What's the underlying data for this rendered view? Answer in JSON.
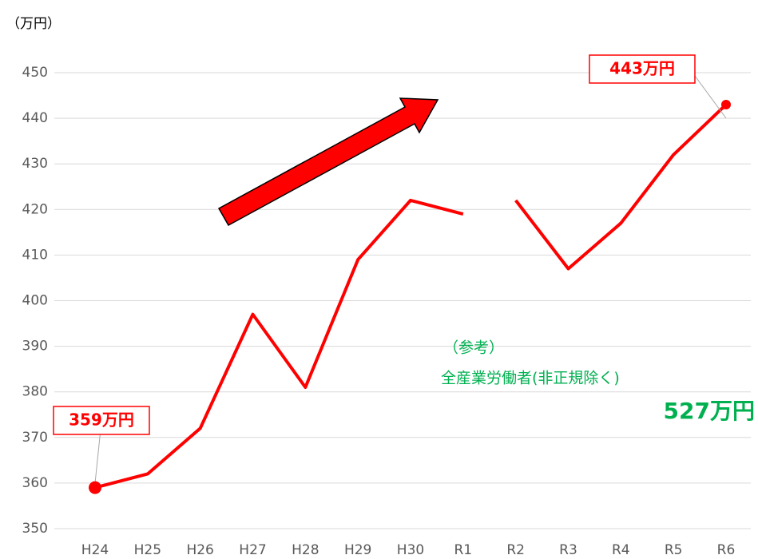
{
  "chart_data": {
    "type": "line",
    "categories": [
      "H24",
      "H25",
      "H26",
      "H27",
      "H28",
      "H29",
      "H30",
      "R1",
      "R2",
      "R3",
      "R4",
      "R5",
      "R6"
    ],
    "series": [
      {
        "color": "#ff0000",
        "values": [
          359,
          362,
          372,
          397,
          381,
          409,
          422,
          419,
          null,
          null,
          null,
          null,
          null
        ]
      },
      {
        "color": "#ff0000",
        "values": [
          null,
          null,
          null,
          null,
          null,
          null,
          null,
          null,
          422,
          407,
          417,
          432,
          443
        ]
      }
    ],
    "ylim": [
      350,
      450
    ],
    "yticks": [
      350,
      360,
      370,
      380,
      390,
      400,
      410,
      420,
      430,
      440,
      450
    ],
    "grid": true,
    "annotations": {
      "unit": "（万円）",
      "start": "359万円",
      "end": "443万円",
      "ref_title": "（参考）",
      "ref_label": "全産業労働者(非正規除く)",
      "ref_value": "527万円"
    }
  }
}
